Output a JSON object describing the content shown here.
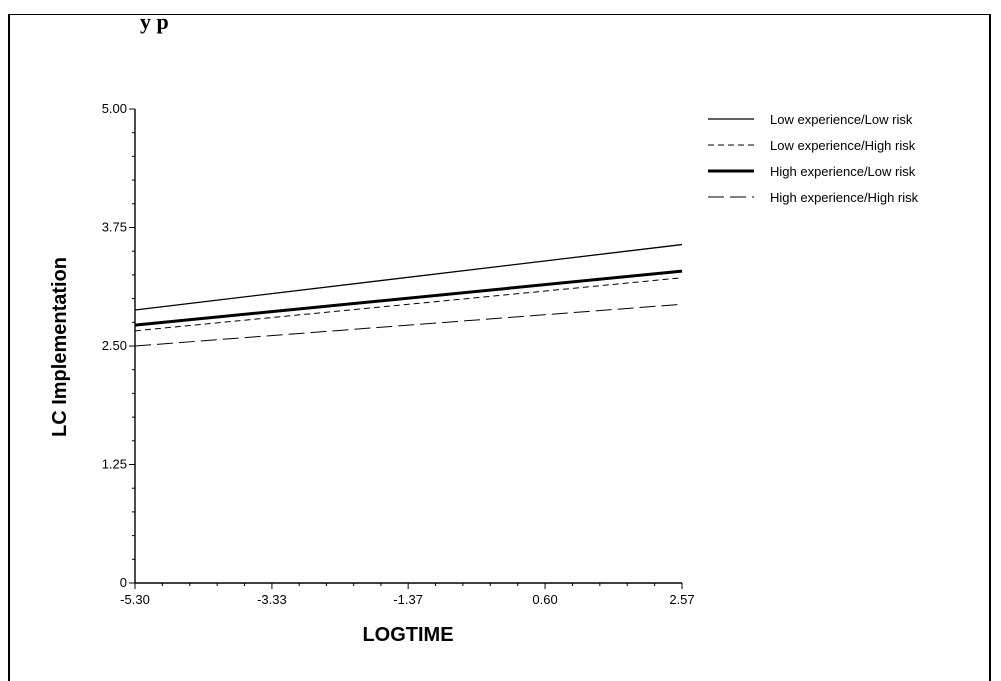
{
  "page": {
    "title_fragment": "y        p"
  },
  "chart_data": {
    "type": "line",
    "title": "",
    "xlabel": "LOGTIME",
    "ylabel": "LC Implementation",
    "xlim": [
      -5.3,
      2.57
    ],
    "ylim": [
      0,
      5.0
    ],
    "x_ticks": [
      "-5.30",
      "-3.33",
      "-1.37",
      "0.60",
      "2.57"
    ],
    "y_ticks": [
      "0",
      "1.25",
      "2.50",
      "3.75",
      "5.00"
    ],
    "grid": false,
    "legend_position": "top-right",
    "series": [
      {
        "name": "Low experience/Low risk",
        "x": [
          -5.3,
          2.57
        ],
        "values": [
          2.88,
          3.57
        ],
        "style": "solid-thin"
      },
      {
        "name": "Low experience/High risk",
        "x": [
          -5.3,
          2.57
        ],
        "values": [
          2.66,
          3.22
        ],
        "style": "dashed-short"
      },
      {
        "name": "High experience/Low risk",
        "x": [
          -5.3,
          2.57
        ],
        "values": [
          2.72,
          3.29
        ],
        "style": "solid-thick"
      },
      {
        "name": "High experience/High risk",
        "x": [
          -5.3,
          2.57
        ],
        "values": [
          2.5,
          2.94
        ],
        "style": "dashed-long"
      }
    ]
  }
}
